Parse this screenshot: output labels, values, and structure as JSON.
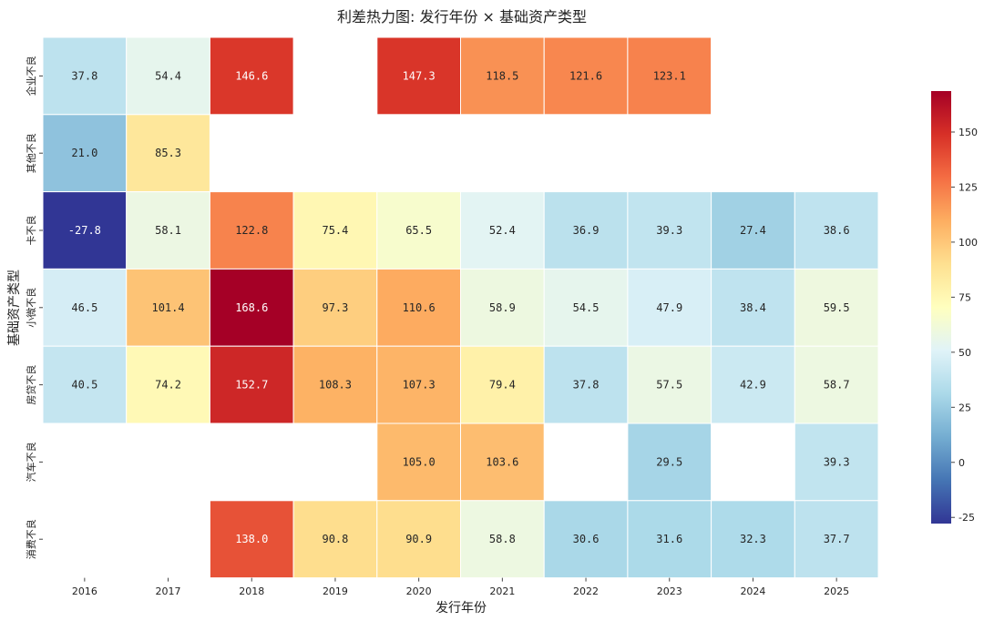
{
  "chart_data": {
    "type": "heatmap",
    "title": "利差热力图: 发行年份 × 基础资产类型",
    "xlabel": "发行年份",
    "ylabel": "基础资产类型",
    "x_categories": [
      "2016",
      "2017",
      "2018",
      "2019",
      "2020",
      "2021",
      "2022",
      "2023",
      "2024",
      "2025"
    ],
    "y_categories": [
      "企业不良",
      "其他不良",
      "卡不良",
      "小微不良",
      "房贷不良",
      "汽车不良",
      "消费不良"
    ],
    "values": [
      [
        37.8,
        54.4,
        146.6,
        null,
        147.3,
        118.5,
        121.6,
        123.1,
        null,
        null
      ],
      [
        21.0,
        85.3,
        null,
        null,
        null,
        null,
        null,
        null,
        null,
        null
      ],
      [
        -27.8,
        58.1,
        122.8,
        75.4,
        65.5,
        52.4,
        36.9,
        39.3,
        27.4,
        38.6
      ],
      [
        46.5,
        101.4,
        168.6,
        97.3,
        110.6,
        58.9,
        54.5,
        47.9,
        38.4,
        59.5
      ],
      [
        40.5,
        74.2,
        152.7,
        108.3,
        107.3,
        79.4,
        37.8,
        57.5,
        42.9,
        58.7
      ],
      [
        null,
        null,
        null,
        null,
        105.0,
        103.6,
        null,
        29.5,
        null,
        39.3
      ],
      [
        null,
        null,
        138.0,
        90.8,
        90.9,
        58.8,
        30.6,
        31.6,
        32.3,
        37.7
      ]
    ],
    "colorscale": "RdYlBu_r",
    "vmin": -27.8,
    "vmax": 168.6,
    "colorbar_ticks": [
      -25,
      0,
      25,
      50,
      75,
      100,
      125,
      150
    ],
    "legend_position": "right"
  }
}
